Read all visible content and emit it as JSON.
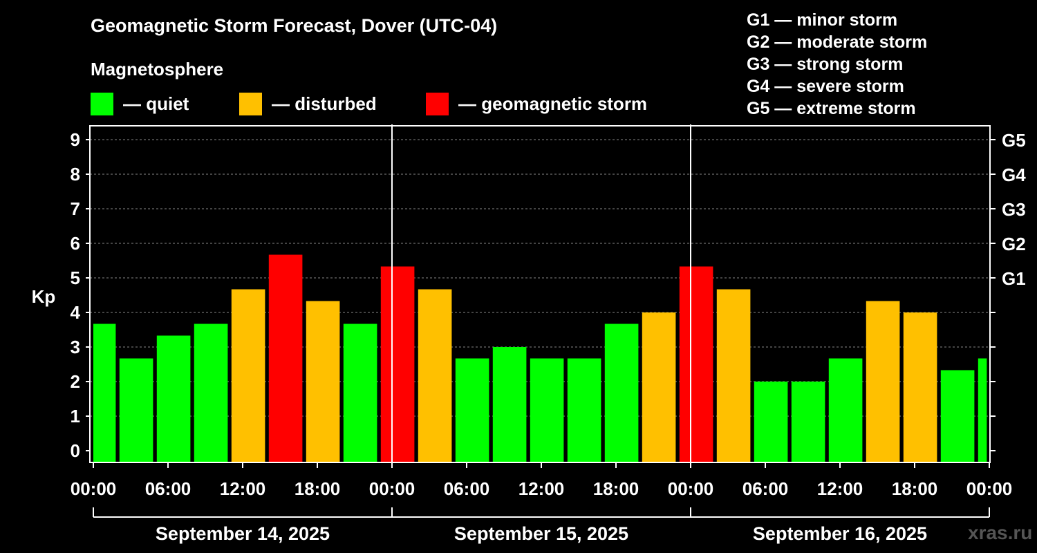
{
  "chart_data": {
    "type": "bar",
    "title": "Geomagnetic Storm Forecast, Dover (UTC-04)",
    "legend_title": "Magnetosphere",
    "legend": [
      {
        "label": "— quiet",
        "color": "#00ff00"
      },
      {
        "label": "— disturbed",
        "color": "#ffc000"
      },
      {
        "label": "— geomagnetic storm",
        "color": "#ff0000"
      }
    ],
    "g_scale": [
      "G1 — minor storm",
      "G2 — moderate storm",
      "G3 — strong storm",
      "G4 — severe storm",
      "G5 — extreme storm"
    ],
    "ylabel": "Kp",
    "ylim": [
      0,
      9
    ],
    "yticks": [
      "0",
      "1",
      "2",
      "3",
      "4",
      "5",
      "6",
      "7",
      "8",
      "9"
    ],
    "right_ticks": [
      {
        "kp": 5,
        "label": "G1"
      },
      {
        "kp": 6,
        "label": "G2"
      },
      {
        "kp": 7,
        "label": "G3"
      },
      {
        "kp": 8,
        "label": "G4"
      },
      {
        "kp": 9,
        "label": "G5"
      }
    ],
    "xlim_hours": [
      0,
      72
    ],
    "xticks": [
      {
        "h": 0,
        "label": "00:00"
      },
      {
        "h": 6,
        "label": "06:00"
      },
      {
        "h": 12,
        "label": "12:00"
      },
      {
        "h": 18,
        "label": "18:00"
      },
      {
        "h": 24,
        "label": "00:00"
      },
      {
        "h": 30,
        "label": "06:00"
      },
      {
        "h": 36,
        "label": "12:00"
      },
      {
        "h": 42,
        "label": "18:00"
      },
      {
        "h": 48,
        "label": "00:00"
      },
      {
        "h": 54,
        "label": "06:00"
      },
      {
        "h": 60,
        "label": "12:00"
      },
      {
        "h": 66,
        "label": "18:00"
      },
      {
        "h": 72,
        "label": "00:00"
      }
    ],
    "dates": [
      "September 14, 2025",
      "September 15, 2025",
      "September 16, 2025"
    ],
    "colors": {
      "quiet": "#00ff00",
      "disturbed": "#ffc000",
      "storm": "#ff0000"
    },
    "bars": [
      {
        "start": 0,
        "end": 1.8,
        "kp": 3.67,
        "level": "quiet"
      },
      {
        "start": 2.1,
        "end": 4.8,
        "kp": 2.67,
        "level": "quiet"
      },
      {
        "start": 5.1,
        "end": 7.8,
        "kp": 3.33,
        "level": "quiet"
      },
      {
        "start": 8.1,
        "end": 10.8,
        "kp": 3.67,
        "level": "quiet"
      },
      {
        "start": 11.1,
        "end": 13.8,
        "kp": 4.67,
        "level": "disturbed"
      },
      {
        "start": 14.1,
        "end": 16.8,
        "kp": 5.67,
        "level": "storm"
      },
      {
        "start": 17.1,
        "end": 19.8,
        "kp": 4.33,
        "level": "disturbed"
      },
      {
        "start": 20.1,
        "end": 22.8,
        "kp": 3.67,
        "level": "quiet"
      },
      {
        "start": 23.1,
        "end": 25.8,
        "kp": 5.33,
        "level": "storm"
      },
      {
        "start": 26.1,
        "end": 28.8,
        "kp": 4.67,
        "level": "disturbed"
      },
      {
        "start": 29.1,
        "end": 31.8,
        "kp": 2.67,
        "level": "quiet"
      },
      {
        "start": 32.1,
        "end": 34.8,
        "kp": 3.0,
        "level": "quiet"
      },
      {
        "start": 35.1,
        "end": 37.8,
        "kp": 2.67,
        "level": "quiet"
      },
      {
        "start": 38.1,
        "end": 40.8,
        "kp": 2.67,
        "level": "quiet"
      },
      {
        "start": 41.1,
        "end": 43.8,
        "kp": 3.67,
        "level": "quiet"
      },
      {
        "start": 44.1,
        "end": 46.8,
        "kp": 4.0,
        "level": "disturbed"
      },
      {
        "start": 47.1,
        "end": 49.8,
        "kp": 5.33,
        "level": "storm"
      },
      {
        "start": 50.1,
        "end": 52.8,
        "kp": 4.67,
        "level": "disturbed"
      },
      {
        "start": 53.1,
        "end": 55.8,
        "kp": 2.0,
        "level": "quiet"
      },
      {
        "start": 56.1,
        "end": 58.8,
        "kp": 2.0,
        "level": "quiet"
      },
      {
        "start": 59.1,
        "end": 61.8,
        "kp": 2.67,
        "level": "quiet"
      },
      {
        "start": 62.1,
        "end": 64.8,
        "kp": 4.33,
        "level": "disturbed"
      },
      {
        "start": 65.1,
        "end": 67.8,
        "kp": 4.0,
        "level": "disturbed"
      },
      {
        "start": 68.1,
        "end": 70.8,
        "kp": 2.33,
        "level": "quiet"
      },
      {
        "start": 71.1,
        "end": 71.8,
        "kp": 2.67,
        "level": "quiet"
      }
    ]
  },
  "watermark": "xras.ru"
}
